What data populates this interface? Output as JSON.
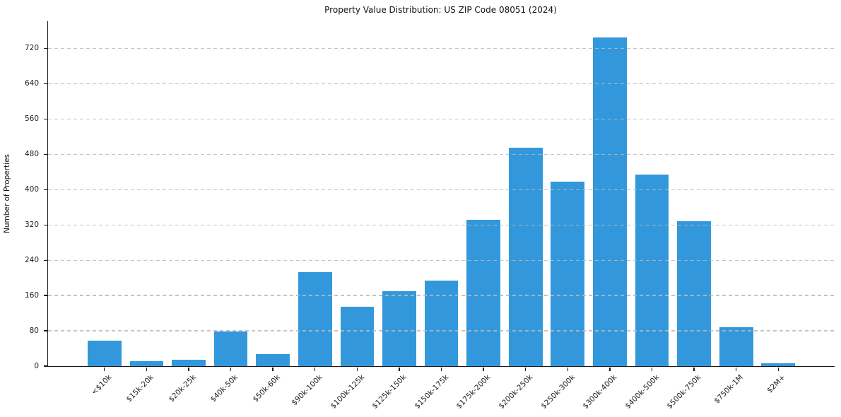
{
  "chart_data": {
    "type": "bar",
    "title": "Property Value Distribution: US ZIP Code 08051 (2024)",
    "xlabel": "",
    "ylabel": "Number of Properties",
    "categories": [
      "<$10k",
      "$15k-20k",
      "$20k-25k",
      "$40k-50k",
      "$50k-60k",
      "$90k-100k",
      "$100k-125k",
      "$125k-150k",
      "$150k-175k",
      "$175k-200k",
      "$200k-250k",
      "$250k-300k",
      "$300k-400k",
      "$400k-500k",
      "$500k-750k",
      "$750k-1M",
      "$2M+"
    ],
    "values": [
      58,
      12,
      14,
      79,
      27,
      214,
      135,
      170,
      194,
      332,
      496,
      419,
      745,
      435,
      328,
      88,
      7
    ],
    "yticks": [
      0,
      80,
      160,
      240,
      320,
      400,
      480,
      560,
      640,
      720
    ],
    "ylim": [
      0,
      782
    ],
    "grid": "horizontal dashed gridlines drawn over bars",
    "legend": "none",
    "colors": {
      "bar": "#3398db",
      "grid": "#b9b9b9",
      "axis": "#16161d",
      "text": "#111111"
    }
  }
}
